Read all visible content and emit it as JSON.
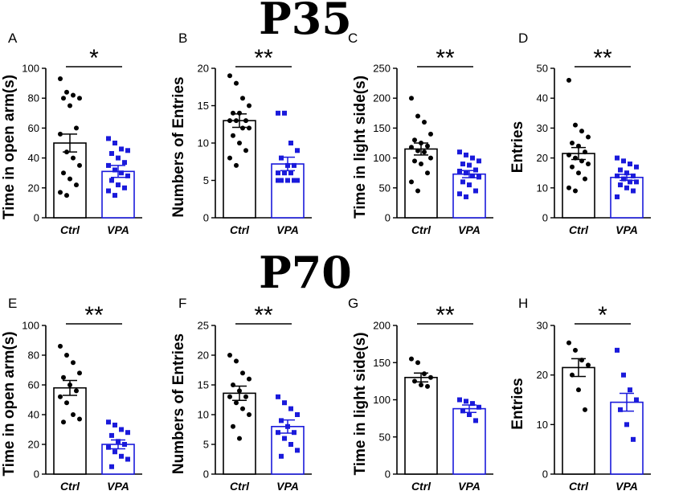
{
  "titles": {
    "top": "P35",
    "bottom": "P70"
  },
  "colors": {
    "ctrl": "#000000",
    "vpa": "#1a1adb"
  },
  "chart_data": [
    {
      "panel": "A",
      "type": "bar",
      "ylabel": "Time in open arm(s)",
      "categories": [
        "Ctrl",
        "VPA"
      ],
      "ylim": [
        0,
        100
      ],
      "yticks": [
        0,
        20,
        40,
        60,
        80,
        100
      ],
      "significance": "*",
      "series": [
        {
          "name": "Ctrl",
          "mean": 50,
          "sem": 6,
          "points": [
            93,
            84,
            82,
            80,
            80,
            75,
            60,
            56,
            44,
            40,
            35,
            30,
            26,
            22,
            17,
            15
          ]
        },
        {
          "name": "VPA",
          "mean": 31,
          "sem": 4,
          "points": [
            53,
            50,
            46,
            45,
            43,
            40,
            37,
            35,
            32,
            30,
            28,
            25,
            22,
            20,
            18,
            15
          ]
        }
      ]
    },
    {
      "panel": "B",
      "type": "bar",
      "ylabel": "Numbers of Entries",
      "categories": [
        "Ctrl",
        "VPA"
      ],
      "ylim": [
        0,
        20
      ],
      "yticks": [
        0,
        5,
        10,
        15,
        20
      ],
      "significance": "**",
      "series": [
        {
          "name": "Ctrl",
          "mean": 13,
          "sem": 0.9,
          "points": [
            19,
            18,
            16,
            15,
            14,
            14,
            13,
            13,
            13,
            12,
            12,
            11,
            10,
            9,
            8,
            7
          ]
        },
        {
          "name": "VPA",
          "mean": 7.2,
          "sem": 0.9,
          "points": [
            14,
            14,
            10,
            9,
            8,
            7,
            7,
            6,
            6,
            6,
            5,
            5,
            5,
            5,
            5
          ]
        }
      ]
    },
    {
      "panel": "C",
      "type": "bar",
      "ylabel": "Time in light side(s)",
      "categories": [
        "Ctrl",
        "VPA"
      ],
      "ylim": [
        0,
        250
      ],
      "yticks": [
        0,
        50,
        100,
        150,
        200,
        250
      ],
      "significance": "**",
      "series": [
        {
          "name": "Ctrl",
          "mean": 115,
          "sem": 10,
          "points": [
            200,
            170,
            160,
            140,
            130,
            125,
            120,
            118,
            112,
            110,
            100,
            95,
            90,
            75,
            60,
            45
          ]
        },
        {
          "name": "VPA",
          "mean": 73,
          "sem": 6,
          "points": [
            110,
            105,
            100,
            95,
            90,
            88,
            80,
            78,
            75,
            70,
            68,
            60,
            55,
            45,
            40,
            35
          ]
        }
      ]
    },
    {
      "panel": "D",
      "type": "bar",
      "ylabel": "Entries",
      "categories": [
        "Ctrl",
        "VPA"
      ],
      "ylim": [
        0,
        50
      ],
      "yticks": [
        0,
        10,
        20,
        30,
        40,
        50
      ],
      "significance": "**",
      "series": [
        {
          "name": "Ctrl",
          "mean": 21.5,
          "sem": 2,
          "points": [
            46,
            31,
            29,
            27,
            25,
            24,
            22,
            21,
            20,
            19,
            18,
            17,
            15,
            13,
            10,
            9
          ]
        },
        {
          "name": "VPA",
          "mean": 13.5,
          "sem": 1,
          "points": [
            20,
            19,
            18,
            17,
            16,
            15,
            14,
            14,
            13,
            12,
            12,
            11,
            10,
            9,
            7
          ]
        }
      ]
    },
    {
      "panel": "E",
      "type": "bar",
      "ylabel": "Time in open arm(s)",
      "categories": [
        "Ctrl",
        "VPA"
      ],
      "ylim": [
        0,
        100
      ],
      "yticks": [
        0,
        20,
        40,
        60,
        80,
        100
      ],
      "significance": "**",
      "series": [
        {
          "name": "Ctrl",
          "mean": 58,
          "sem": 5,
          "points": [
            86,
            80,
            75,
            68,
            65,
            60,
            56,
            52,
            48,
            40,
            37,
            35
          ]
        },
        {
          "name": "VPA",
          "mean": 20,
          "sem": 3,
          "points": [
            35,
            33,
            30,
            28,
            26,
            22,
            20,
            18,
            15,
            12,
            10,
            5
          ]
        }
      ]
    },
    {
      "panel": "F",
      "type": "bar",
      "ylabel": "Numbers of Entries",
      "categories": [
        "Ctrl",
        "VPA"
      ],
      "ylim": [
        0,
        25
      ],
      "yticks": [
        0,
        5,
        10,
        15,
        20,
        25
      ],
      "significance": "**",
      "series": [
        {
          "name": "Ctrl",
          "mean": 13.6,
          "sem": 1.2,
          "points": [
            20,
            19,
            17,
            16,
            15,
            14,
            13,
            13,
            12,
            11,
            10,
            8,
            6
          ]
        },
        {
          "name": "VPA",
          "mean": 8,
          "sem": 1.1,
          "points": [
            13,
            12,
            11,
            10,
            9,
            8,
            7,
            7,
            6,
            5,
            4,
            3
          ]
        }
      ]
    },
    {
      "panel": "G",
      "type": "bar",
      "ylabel": "Time in light side(s)",
      "categories": [
        "Ctrl",
        "VPA"
      ],
      "ylim": [
        0,
        200
      ],
      "yticks": [
        0,
        50,
        100,
        150,
        200
      ],
      "significance": "**",
      "series": [
        {
          "name": "Ctrl",
          "mean": 130,
          "sem": 6,
          "points": [
            155,
            150,
            135,
            130,
            125,
            120,
            118
          ]
        },
        {
          "name": "VPA",
          "mean": 88,
          "sem": 5,
          "points": [
            100,
            98,
            95,
            90,
            85,
            80,
            72
          ]
        }
      ]
    },
    {
      "panel": "H",
      "type": "bar",
      "ylabel": "Entries",
      "categories": [
        "Ctrl",
        "VPA"
      ],
      "ylim": [
        0,
        30
      ],
      "yticks": [
        0,
        10,
        20,
        30
      ],
      "significance": "*",
      "series": [
        {
          "name": "Ctrl",
          "mean": 21.5,
          "sem": 1.8,
          "points": [
            26.5,
            25,
            23,
            22,
            20,
            17,
            13
          ]
        },
        {
          "name": "VPA",
          "mean": 14.5,
          "sem": 1.8,
          "points": [
            25,
            20,
            17,
            15,
            13,
            10,
            7
          ]
        }
      ]
    }
  ]
}
